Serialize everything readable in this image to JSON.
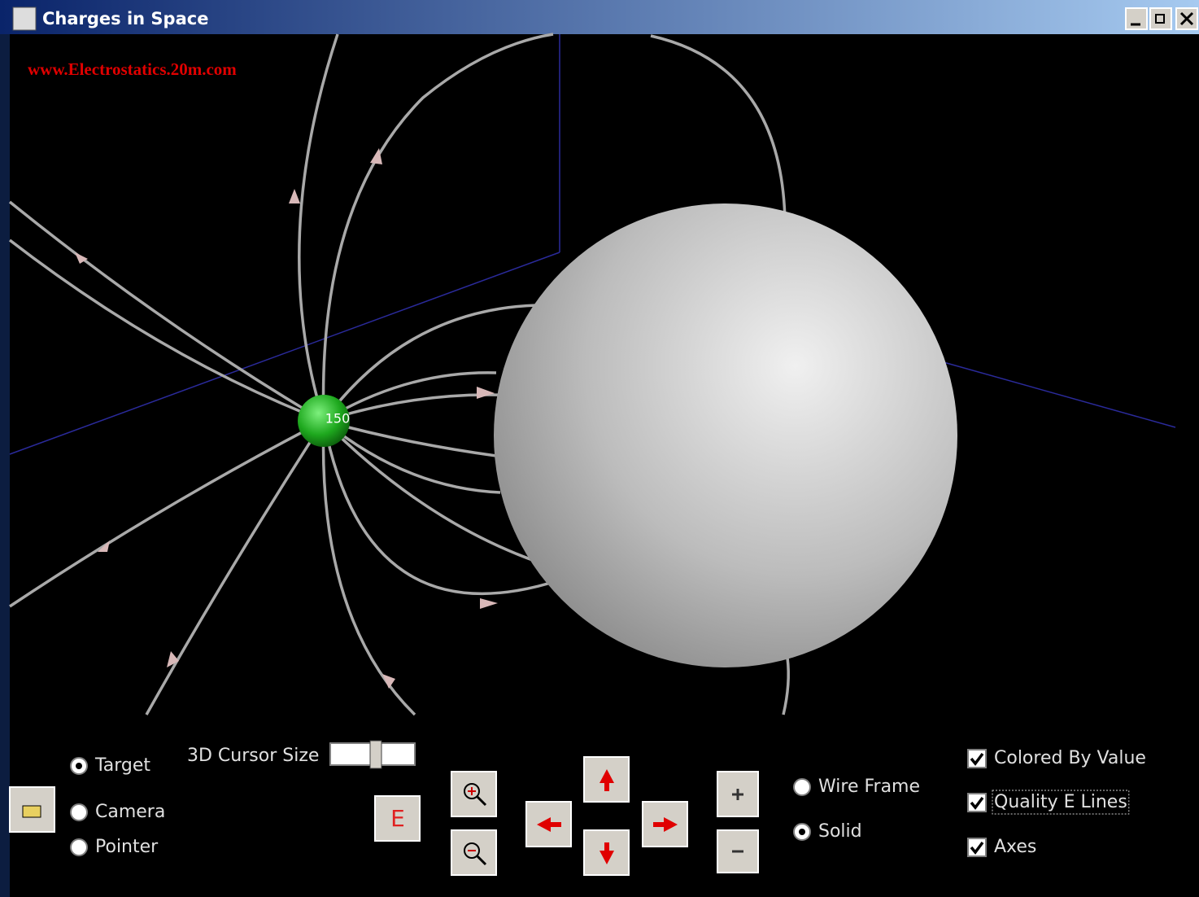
{
  "window": {
    "title": "Charges in Space"
  },
  "scene": {
    "watermark": "www.Electrostatics.20m.com",
    "charge_label": "150"
  },
  "controls": {
    "mode_radios": [
      {
        "label": "Target",
        "checked": true
      },
      {
        "label": "Camera",
        "checked": false
      },
      {
        "label": "Pointer",
        "checked": false
      }
    ],
    "cursor_size_label": "3D Cursor Size",
    "e_button": "E",
    "render_radios": [
      {
        "label": "Wire Frame",
        "checked": false
      },
      {
        "label": "Solid",
        "checked": true
      }
    ],
    "checkboxes": [
      {
        "label": "Colored By Value",
        "checked": true
      },
      {
        "label": "Quality E Lines",
        "checked": true
      },
      {
        "label": "Axes",
        "checked": true
      }
    ]
  }
}
